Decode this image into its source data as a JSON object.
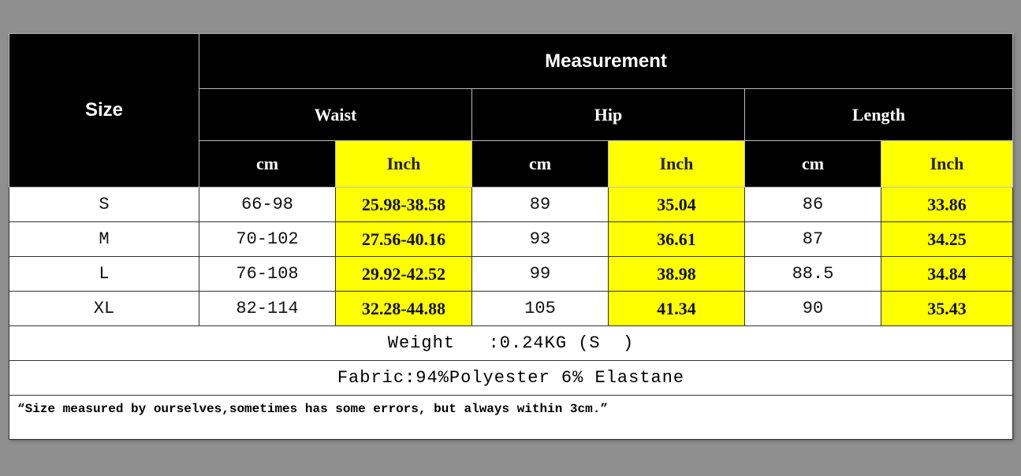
{
  "header": {
    "size": "Size",
    "measurement": "Measurement",
    "groups": [
      "Waist",
      "Hip",
      "Length"
    ],
    "units": [
      "cm",
      "Inch",
      "cm",
      "Inch",
      "cm",
      "Inch"
    ]
  },
  "rows": [
    {
      "size": "S",
      "values": [
        "66-98",
        "25.98-38.58",
        "89",
        "35.04",
        "86",
        "33.86"
      ]
    },
    {
      "size": "M",
      "values": [
        "70-102",
        "27.56-40.16",
        "93",
        "36.61",
        "87",
        "34.25"
      ]
    },
    {
      "size": "L",
      "values": [
        "76-108",
        "29.92-42.52",
        "99",
        "38.98",
        "88.5",
        "34.84"
      ]
    },
    {
      "size": "XL",
      "values": [
        "82-114",
        "32.28-44.88",
        "105",
        "41.34",
        "90",
        "35.43"
      ]
    }
  ],
  "weight": "Weight   :0.24KG (S  )",
  "fabric": "Fabric:94%Polyester 6% Elastane",
  "note": "“Size measured by ourselves,sometimes has some errors, but always within 3cm.”",
  "colors": {
    "header_bg": "#000000",
    "inch_highlight": "#ffff00",
    "page_bg": "#8f8f8f"
  }
}
